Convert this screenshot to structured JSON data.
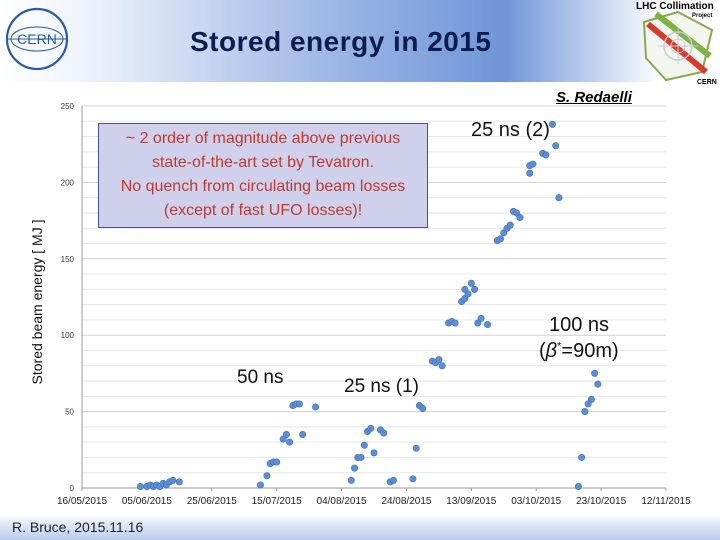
{
  "header": {
    "title": "Stored energy in 2015",
    "cern_logo_text": "CERN",
    "collimation_title": "LHC Collimation",
    "collimation_sub": "Project",
    "collimation_cern": "CERN",
    "brand_colors": {
      "title": "#0b1d4d",
      "cern_blue": "#2a5aa8",
      "note_text": "#c0392b",
      "point": "#5b8ed6"
    }
  },
  "author": "S. Redaelli",
  "footer": "R. Bruce, 2015.11.16",
  "note": {
    "lines": [
      "~ 2 order of magnitude above previous",
      "state-of-the-art set by Tevatron.",
      "No quench from circulating beam losses",
      "(except of fast UFO losses)!"
    ]
  },
  "annotations": {
    "ns50": "50 ns",
    "ns25_1": "25 ns (1)",
    "ns25_2": "25 ns (2)",
    "ns100": "100 ns",
    "beta_prefix": "(",
    "beta_symbol": "β",
    "beta_star": "*",
    "beta_value": "=90m)"
  },
  "chart_data": {
    "type": "scatter",
    "title": "Stored energy in 2015",
    "xlabel": "",
    "ylabel": "Stored beam energy [ MJ ]",
    "ylim": [
      0,
      250
    ],
    "yticks": [
      0,
      50,
      100,
      150,
      200,
      250
    ],
    "xlim_days": [
      0,
      180
    ],
    "xticks": [
      {
        "day": 0,
        "label": "16/05/2015"
      },
      {
        "day": 20,
        "label": "05/06/2015"
      },
      {
        "day": 40,
        "label": "25/06/2015"
      },
      {
        "day": 60,
        "label": "15/07/2015"
      },
      {
        "day": 80,
        "label": "04/08/2015"
      },
      {
        "day": 100,
        "label": "24/08/2015"
      },
      {
        "day": 120,
        "label": "13/09/2015"
      },
      {
        "day": 140,
        "label": "03/10/2015"
      },
      {
        "day": 160,
        "label": "23/10/2015"
      },
      {
        "day": 180,
        "label": "12/11/2015"
      }
    ],
    "grid": true,
    "series": [
      {
        "name": "Stored energy",
        "points": [
          [
            18,
            1
          ],
          [
            20,
            1
          ],
          [
            21,
            2
          ],
          [
            22,
            1
          ],
          [
            23,
            2
          ],
          [
            24,
            1
          ],
          [
            25,
            3
          ],
          [
            26,
            2
          ],
          [
            27,
            4
          ],
          [
            28,
            5
          ],
          [
            30,
            4
          ],
          [
            55,
            2
          ],
          [
            57,
            8
          ],
          [
            58,
            16
          ],
          [
            59,
            17
          ],
          [
            60,
            17
          ],
          [
            62,
            32
          ],
          [
            63,
            35
          ],
          [
            64,
            30
          ],
          [
            65,
            54
          ],
          [
            66,
            55
          ],
          [
            67,
            55
          ],
          [
            68,
            35
          ],
          [
            72,
            53
          ],
          [
            83,
            5
          ],
          [
            84,
            13
          ],
          [
            85,
            20
          ],
          [
            86,
            20
          ],
          [
            87,
            28
          ],
          [
            88,
            37
          ],
          [
            89,
            39
          ],
          [
            90,
            23
          ],
          [
            92,
            38
          ],
          [
            93,
            36
          ],
          [
            95,
            4
          ],
          [
            96,
            5
          ],
          [
            102,
            6
          ],
          [
            103,
            26
          ],
          [
            104,
            54
          ],
          [
            105,
            52
          ],
          [
            108,
            83
          ],
          [
            109,
            82
          ],
          [
            110,
            84
          ],
          [
            111,
            80
          ],
          [
            113,
            108
          ],
          [
            114,
            109
          ],
          [
            115,
            108
          ],
          [
            117,
            122
          ],
          [
            118,
            124
          ],
          [
            118,
            130
          ],
          [
            119,
            127
          ],
          [
            120,
            134
          ],
          [
            121,
            130
          ],
          [
            122,
            108
          ],
          [
            123,
            111
          ],
          [
            125,
            107
          ],
          [
            128,
            162
          ],
          [
            129,
            163
          ],
          [
            130,
            167
          ],
          [
            131,
            170
          ],
          [
            132,
            172
          ],
          [
            133,
            181
          ],
          [
            134,
            180
          ],
          [
            135,
            177
          ],
          [
            138,
            206
          ],
          [
            138,
            211
          ],
          [
            139,
            212
          ],
          [
            142,
            219
          ],
          [
            143,
            218
          ],
          [
            145,
            238
          ],
          [
            146,
            224
          ],
          [
            147,
            190
          ],
          [
            153,
            1
          ],
          [
            154,
            20
          ],
          [
            155,
            50
          ],
          [
            156,
            55
          ],
          [
            157,
            58
          ],
          [
            158,
            75
          ],
          [
            159,
            68
          ]
        ]
      }
    ]
  }
}
